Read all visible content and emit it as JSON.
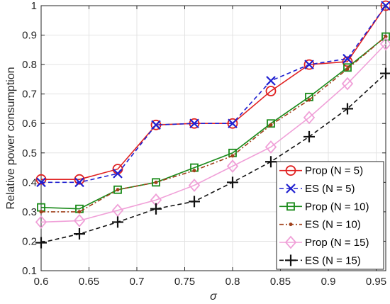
{
  "chart_data": {
    "type": "line",
    "xlabel": "σ",
    "ylabel": "Relative power consumption",
    "xlim": [
      0.6,
      0.96
    ],
    "ylim": [
      0.1,
      1.0
    ],
    "xticks": [
      0.6,
      0.65,
      0.7,
      0.75,
      0.8,
      0.85,
      0.9,
      0.95
    ],
    "yticks": [
      0.1,
      0.2,
      0.3,
      0.4,
      0.5,
      0.6,
      0.7,
      0.8,
      0.9,
      1.0
    ],
    "xtick_labels": [
      "0.6",
      "0.65",
      "0.7",
      "0.75",
      "0.8",
      "0.85",
      "0.9",
      "0.95"
    ],
    "ytick_labels": [
      "0.1",
      "0.2",
      "0.3",
      "0.4",
      "0.5",
      "0.6",
      "0.7",
      "0.8",
      "0.9",
      "1"
    ],
    "grid": true,
    "legend_position": "bottom-right",
    "x": [
      0.6,
      0.64,
      0.68,
      0.72,
      0.76,
      0.8,
      0.84,
      0.88,
      0.92,
      0.96
    ],
    "series": [
      {
        "name": "Prop (N = 5)",
        "color": "#e02020",
        "marker": "circle",
        "dash": "solid",
        "values": [
          0.41,
          0.41,
          0.445,
          0.595,
          0.6,
          0.6,
          0.71,
          0.8,
          0.81,
          1.0
        ]
      },
      {
        "name": "ES (N = 5)",
        "color": "#2020d0",
        "marker": "x",
        "dash": "dashed",
        "values": [
          0.4,
          0.4,
          0.43,
          0.595,
          0.6,
          0.6,
          0.745,
          0.8,
          0.82,
          1.0
        ]
      },
      {
        "name": "Prop (N = 10)",
        "color": "#1a8a1a",
        "marker": "square",
        "dash": "solid",
        "values": [
          0.315,
          0.31,
          0.375,
          0.4,
          0.45,
          0.5,
          0.6,
          0.69,
          0.79,
          0.895
        ]
      },
      {
        "name": "ES (N = 10)",
        "color": "#a0401a",
        "marker": "dot",
        "dash": "dashdot",
        "values": [
          0.3,
          0.3,
          0.375,
          0.4,
          0.44,
          0.49,
          0.595,
          0.68,
          0.785,
          0.895
        ]
      },
      {
        "name": "Prop (N = 15)",
        "color": "#f0a0d8",
        "marker": "diamond",
        "dash": "solid",
        "values": [
          0.265,
          0.27,
          0.305,
          0.34,
          0.39,
          0.455,
          0.52,
          0.62,
          0.735,
          0.87
        ]
      },
      {
        "name": "ES (N = 15)",
        "color": "#111111",
        "marker": "plus",
        "dash": "dashed",
        "values": [
          0.195,
          0.225,
          0.265,
          0.31,
          0.335,
          0.4,
          0.47,
          0.555,
          0.65,
          0.77
        ]
      }
    ]
  }
}
